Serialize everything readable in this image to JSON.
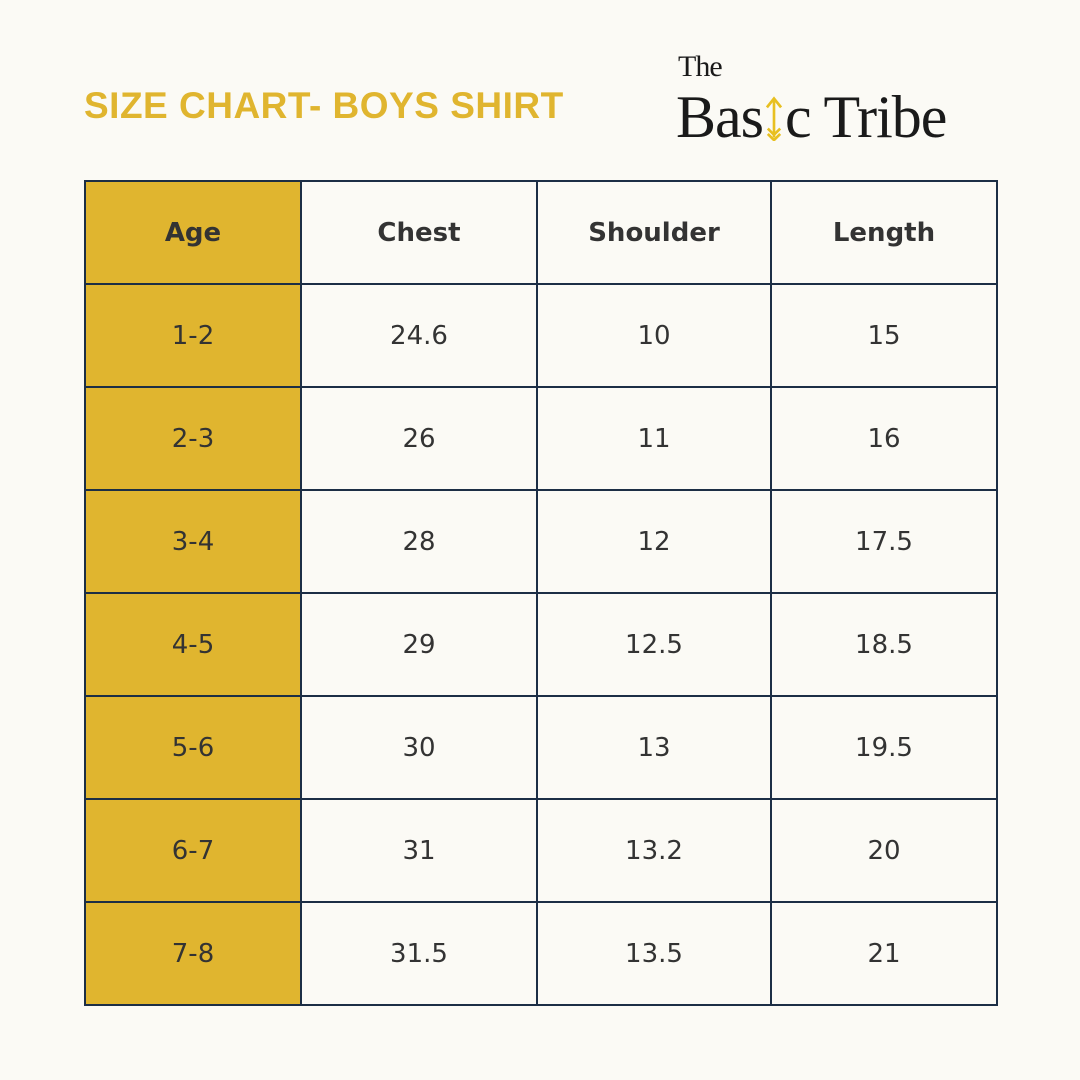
{
  "title": "SIZE CHART- BOYS SHIRT",
  "logo": {
    "line1": "The",
    "line2_prefix": "Bas",
    "line2_suffix": "c Tribe",
    "arrow_icon": "arrow-up-icon",
    "arrow_color": "#e8c021"
  },
  "colors": {
    "accent": "#e0b52f",
    "border": "#1c2e45",
    "background": "#fbfaf5"
  },
  "table": {
    "headers": [
      "Age",
      "Chest",
      "Shoulder",
      "Length"
    ],
    "rows": [
      [
        "1-2",
        "24.6",
        "10",
        "15"
      ],
      [
        "2-3",
        "26",
        "11",
        "16"
      ],
      [
        "3-4",
        "28",
        "12",
        "17.5"
      ],
      [
        "4-5",
        "29",
        "12.5",
        "18.5"
      ],
      [
        "5-6",
        "30",
        "13",
        "19.5"
      ],
      [
        "6-7",
        "31",
        "13.2",
        "20"
      ],
      [
        "7-8",
        "31.5",
        "13.5",
        "21"
      ]
    ]
  }
}
